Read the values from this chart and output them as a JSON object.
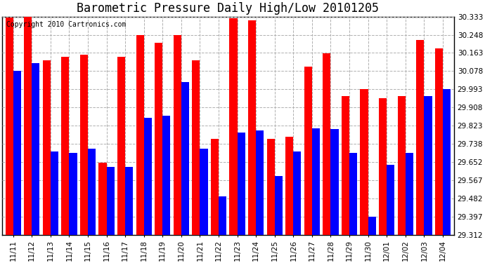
{
  "title": "Barometric Pressure Daily High/Low 20101205",
  "copyright": "Copyright 2010 Cartronics.com",
  "dates": [
    "11/11",
    "11/12",
    "11/13",
    "11/14",
    "11/15",
    "11/16",
    "11/17",
    "11/18",
    "11/19",
    "11/20",
    "11/21",
    "11/22",
    "11/23",
    "11/24",
    "11/25",
    "11/26",
    "11/27",
    "11/28",
    "11/29",
    "11/30",
    "12/01",
    "12/02",
    "12/03",
    "12/04"
  ],
  "highs": [
    30.33,
    30.333,
    30.13,
    30.145,
    30.155,
    29.65,
    30.145,
    30.248,
    30.21,
    30.248,
    30.13,
    29.76,
    30.325,
    30.315,
    29.76,
    29.77,
    30.1,
    30.16,
    29.96,
    29.993,
    29.95,
    29.96,
    30.225,
    30.185
  ],
  "lows": [
    30.078,
    30.115,
    29.7,
    29.695,
    29.715,
    29.63,
    29.63,
    29.86,
    29.87,
    30.025,
    29.715,
    29.49,
    29.79,
    29.8,
    29.585,
    29.7,
    29.81,
    29.808,
    29.695,
    29.395,
    29.64,
    29.695,
    29.96,
    29.993
  ],
  "high_color": "#ff0000",
  "low_color": "#0000ff",
  "background_color": "#ffffff",
  "grid_color": "#b0b0b0",
  "yticks": [
    29.312,
    29.397,
    29.482,
    29.567,
    29.652,
    29.738,
    29.823,
    29.908,
    29.993,
    30.078,
    30.163,
    30.248,
    30.333
  ],
  "ymin": 29.312,
  "ymax": 30.333,
  "bar_width": 0.42,
  "title_fontsize": 12,
  "tick_fontsize": 7.5,
  "copyright_fontsize": 7
}
